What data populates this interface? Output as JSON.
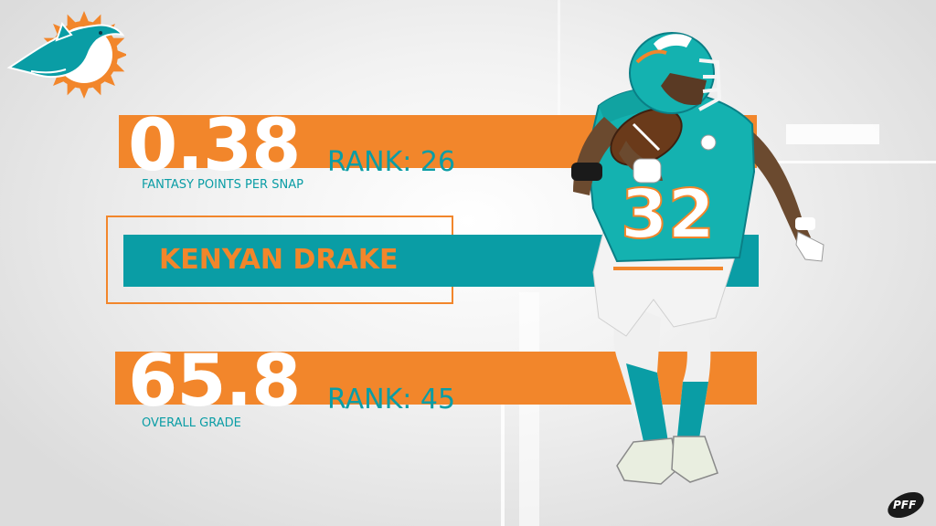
{
  "stat_1": {
    "value": "0.38",
    "rank": "RANK: 26",
    "caption": "FANTASY POINTS PER SNAP"
  },
  "player": {
    "name": "KENYAN DRAKE",
    "jersey_number": "32"
  },
  "stat_2": {
    "value": "65.8",
    "rank": "RANK: 45",
    "caption": "OVERALL GRADE"
  },
  "watermark": "PFF",
  "team_logo": {
    "icon": "dolphin-sun-logo-icon"
  },
  "colors": {
    "orange": "#f2862b",
    "aqua": "#0a9da5",
    "white": "#ffffff",
    "background": "#eeeeee"
  }
}
